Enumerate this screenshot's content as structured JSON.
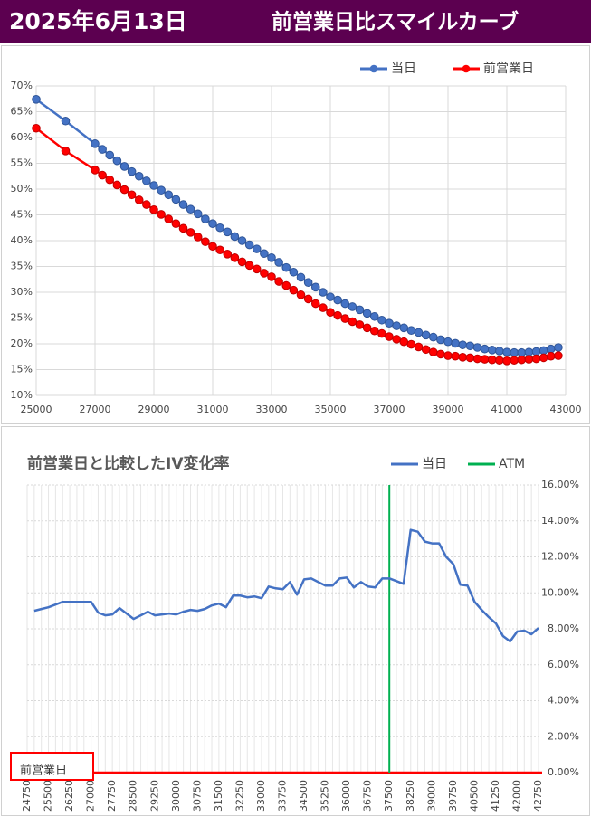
{
  "header": {
    "date": "2025年6月13日",
    "title": "前営業日比スマイルカーブ"
  },
  "chart_data": [
    {
      "type": "line",
      "markers": true,
      "grid": true,
      "x": [
        25000,
        26000,
        27000,
        27250,
        27500,
        27750,
        28000,
        28250,
        28500,
        28750,
        29000,
        29250,
        29500,
        29750,
        30000,
        30250,
        30500,
        30750,
        31000,
        31250,
        31500,
        31750,
        32000,
        32250,
        32500,
        32750,
        33000,
        33250,
        33500,
        33750,
        34000,
        34250,
        34500,
        34750,
        35000,
        35250,
        35500,
        35750,
        36000,
        36250,
        36500,
        36750,
        37000,
        37250,
        37500,
        37750,
        38000,
        38250,
        38500,
        38750,
        39000,
        39250,
        39500,
        39750,
        40000,
        40250,
        40500,
        40750,
        41000,
        41250,
        41500,
        41750,
        42000,
        42250,
        42500,
        42750
      ],
      "series": [
        {
          "name": "当日",
          "color": "#4472c4",
          "values": [
            67.4,
            63.2,
            58.8,
            57.7,
            56.6,
            55.5,
            54.4,
            53.4,
            52.5,
            51.6,
            50.7,
            49.8,
            48.9,
            48.0,
            47.0,
            46.1,
            45.2,
            44.2,
            43.3,
            42.5,
            41.7,
            40.8,
            40.0,
            39.2,
            38.4,
            37.5,
            36.7,
            35.8,
            34.8,
            33.9,
            32.9,
            31.9,
            31.0,
            30.0,
            29.1,
            28.5,
            27.8,
            27.2,
            26.6,
            25.9,
            25.3,
            24.6,
            24.0,
            23.5,
            23.1,
            22.6,
            22.2,
            21.7,
            21.3,
            20.8,
            20.4,
            20.1,
            19.8,
            19.6,
            19.3,
            19.0,
            18.8,
            18.6,
            18.4,
            18.3,
            18.3,
            18.4,
            18.5,
            18.7,
            19.0,
            19.3
          ]
        },
        {
          "name": "前営業日",
          "color": "#ff0000",
          "values": [
            61.8,
            57.4,
            53.7,
            52.7,
            51.8,
            50.8,
            49.9,
            48.9,
            47.9,
            47.0,
            46.0,
            45.1,
            44.2,
            43.3,
            42.4,
            41.6,
            40.7,
            39.8,
            38.9,
            38.2,
            37.4,
            36.7,
            35.9,
            35.2,
            34.5,
            33.7,
            33.0,
            32.1,
            31.3,
            30.4,
            29.5,
            28.7,
            27.8,
            27.0,
            26.1,
            25.5,
            24.9,
            24.3,
            23.7,
            23.1,
            22.5,
            22.0,
            21.4,
            20.9,
            20.4,
            19.9,
            19.4,
            18.9,
            18.4,
            18.0,
            17.7,
            17.6,
            17.4,
            17.3,
            17.1,
            17.0,
            16.9,
            16.8,
            16.7,
            16.8,
            16.9,
            17.0,
            17.1,
            17.3,
            17.6,
            17.7
          ]
        }
      ],
      "xlim": [
        25000,
        43000
      ],
      "xticks": [
        25000,
        27000,
        29000,
        31000,
        33000,
        35000,
        37000,
        39000,
        41000,
        43000
      ],
      "ylim": [
        10,
        70
      ],
      "yticks": [
        {
          "value": 10,
          "label": "10%"
        },
        {
          "value": 15,
          "label": "15%"
        },
        {
          "value": 20,
          "label": "20%"
        },
        {
          "value": 25,
          "label": "25%"
        },
        {
          "value": 30,
          "label": "30%"
        },
        {
          "value": 35,
          "label": "35%"
        },
        {
          "value": 40,
          "label": "40%"
        },
        {
          "value": 45,
          "label": "45%"
        },
        {
          "value": 50,
          "label": "50%"
        },
        {
          "value": 55,
          "label": "55%"
        },
        {
          "value": 60,
          "label": "60%"
        },
        {
          "value": 65,
          "label": "65%"
        },
        {
          "value": 70,
          "label": "70%"
        }
      ],
      "legend": "top-right"
    },
    {
      "type": "line",
      "title": "前営業日と比較したIV変化率",
      "grid": true,
      "yaxis_position": "right",
      "categories": [
        24750,
        null,
        null,
        25500,
        null,
        null,
        26250,
        null,
        null,
        27000,
        null,
        null,
        27750,
        null,
        null,
        28500,
        null,
        null,
        29250,
        null,
        null,
        30000,
        null,
        null,
        30750,
        null,
        null,
        31500,
        null,
        null,
        32250,
        null,
        null,
        33000,
        null,
        null,
        33750,
        null,
        null,
        34500,
        null,
        null,
        35250,
        null,
        null,
        36000,
        null,
        null,
        36750,
        null,
        null,
        37500,
        null,
        null,
        38250,
        null,
        null,
        39000,
        null,
        null,
        39750,
        null,
        null,
        40500,
        null,
        null,
        41250,
        null,
        null,
        42000,
        null,
        null,
        42750
      ],
      "series": [
        {
          "name": "当日",
          "color": "#4472c4",
          "values": [
            null,
            9.0,
            9.1,
            9.2,
            9.35,
            9.5,
            9.5,
            9.5,
            9.5,
            9.5,
            8.9,
            8.75,
            8.8,
            9.15,
            8.85,
            8.55,
            8.75,
            8.95,
            8.75,
            8.8,
            8.85,
            8.8,
            8.95,
            9.05,
            9.0,
            9.1,
            9.3,
            9.4,
            9.2,
            9.85,
            9.85,
            9.75,
            9.8,
            9.7,
            10.35,
            10.25,
            10.2,
            10.6,
            9.9,
            10.75,
            10.8,
            10.6,
            10.4,
            10.4,
            10.8,
            10.85,
            10.3,
            10.6,
            10.35,
            10.3,
            10.8,
            10.8,
            10.65,
            10.5,
            13.5,
            13.4,
            12.85,
            12.75,
            12.75,
            12.0,
            11.6,
            10.45,
            10.4,
            9.5,
            9.05,
            8.65,
            8.3,
            7.6,
            7.3,
            7.85,
            7.9,
            7.7,
            8.05
          ]
        }
      ],
      "atm": {
        "name": "ATM",
        "category": 37500,
        "color": "#00b050"
      },
      "reference_line": {
        "name": "前営業日",
        "value": 0,
        "color": "#ff0000"
      },
      "ylim": [
        0,
        16
      ],
      "yticks": [
        {
          "value": 0,
          "label": "0.00%"
        },
        {
          "value": 2,
          "label": "2.00%"
        },
        {
          "value": 4,
          "label": "4.00%"
        },
        {
          "value": 6,
          "label": "6.00%"
        },
        {
          "value": 8,
          "label": "8.00%"
        },
        {
          "value": 10,
          "label": "10.00%"
        },
        {
          "value": 12,
          "label": "12.00%"
        },
        {
          "value": 14,
          "label": "14.00%"
        },
        {
          "value": 16,
          "label": "16.00%"
        }
      ],
      "legend": "top-right"
    }
  ]
}
